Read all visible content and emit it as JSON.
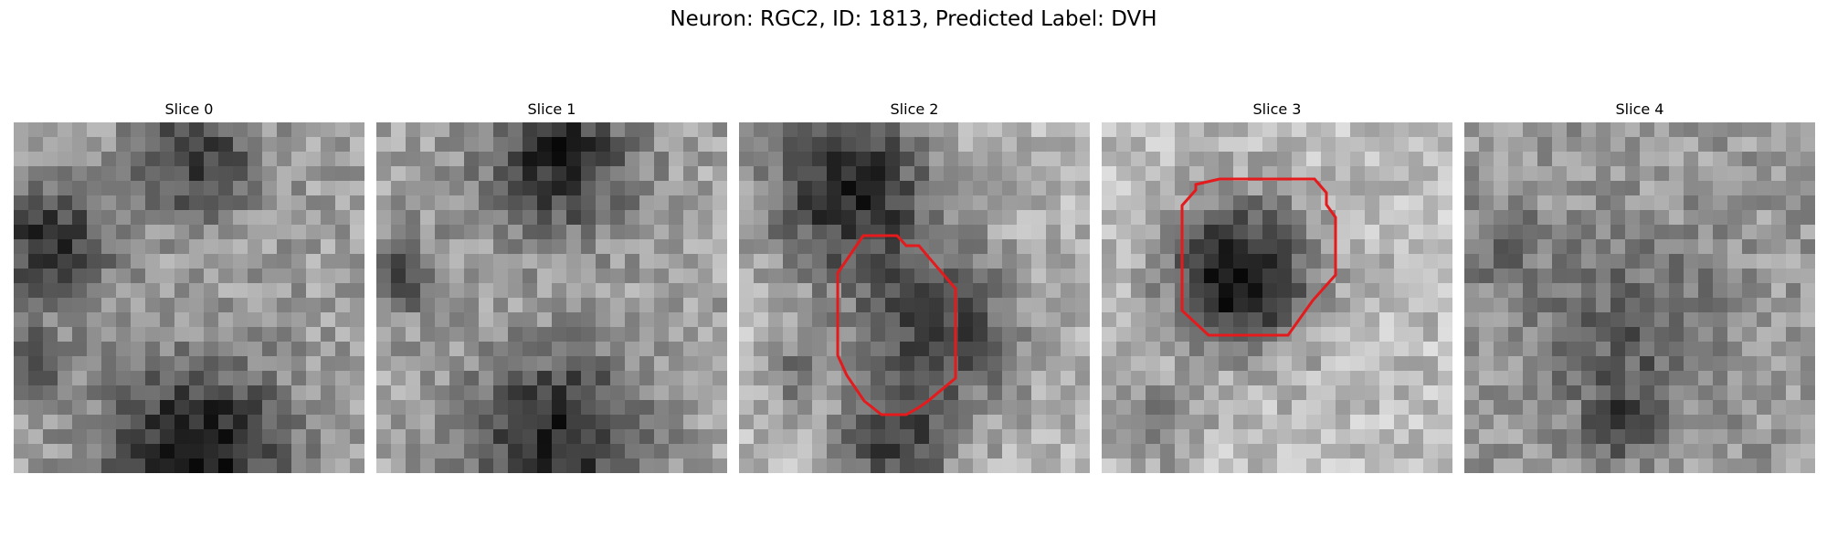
{
  "figure": {
    "title": "Neuron: RGC2, ID: 1813, Predicted Label: DVH"
  },
  "panels": [
    {
      "title": "Slice 0",
      "has_contour": false
    },
    {
      "title": "Slice 1",
      "has_contour": false
    },
    {
      "title": "Slice 2",
      "has_contour": true
    },
    {
      "title": "Slice 3",
      "has_contour": true
    },
    {
      "title": "Slice 4",
      "has_contour": false
    }
  ],
  "colors": {
    "contour": "#e41a1c",
    "background": "#ffffff"
  }
}
